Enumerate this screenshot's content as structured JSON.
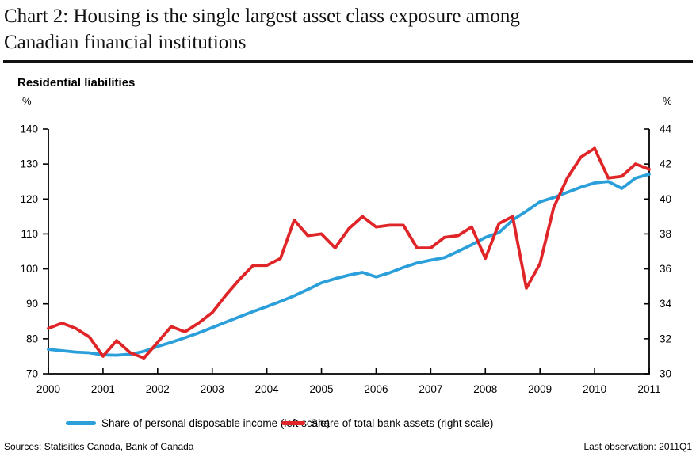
{
  "header": {
    "title_line1": "Chart 2: Housing is the single largest asset class exposure among",
    "title_line2": "Canadian financial institutions",
    "subtitle": "Residential liabilities"
  },
  "chart_data": {
    "type": "line",
    "title": "Residential liabilities",
    "x_frequency": "quarterly",
    "x_start": "2000Q1",
    "x_end": "2011Q1",
    "x_axis": {
      "tick_years": [
        2000,
        2001,
        2002,
        2003,
        2004,
        2005,
        2006,
        2007,
        2008,
        2009,
        2010,
        2011
      ]
    },
    "left_axis": {
      "label": "%",
      "min": 70,
      "max": 140,
      "ticks": [
        140,
        130,
        120,
        110,
        100,
        90,
        80,
        70
      ]
    },
    "right_axis": {
      "label": "%",
      "min": 30,
      "max": 44,
      "ticks": [
        44,
        42,
        40,
        38,
        36,
        34,
        32,
        30
      ]
    },
    "grid": "off",
    "legend_position": "bottom",
    "series": [
      {
        "name": "Share of personal disposable income (left scale)",
        "axis": "left",
        "color": "#2B9FD9",
        "values": [
          77.0,
          76.6,
          76.2,
          76.0,
          75.4,
          75.3,
          75.6,
          76.4,
          77.8,
          79.0,
          80.3,
          81.7,
          83.2,
          84.8,
          86.3,
          87.8,
          89.2,
          90.7,
          92.3,
          94.1,
          96.0,
          97.2,
          98.2,
          99.0,
          97.7,
          98.9,
          100.4,
          101.7,
          102.5,
          103.2,
          105.0,
          106.9,
          109.0,
          110.4,
          114.0,
          116.5,
          119.2,
          120.4,
          121.9,
          123.4,
          124.6,
          125.0,
          123.0,
          126.0,
          127.1
        ]
      },
      {
        "name": "Share of total bank assets (right scale)",
        "axis": "right",
        "color": "#E02528",
        "values": [
          32.6,
          32.9,
          32.6,
          32.1,
          31.0,
          31.9,
          31.2,
          30.9,
          31.8,
          32.7,
          32.4,
          32.9,
          33.5,
          34.5,
          35.4,
          36.2,
          36.2,
          36.6,
          38.8,
          37.9,
          38.0,
          37.2,
          38.3,
          39.0,
          38.4,
          38.5,
          38.5,
          37.2,
          37.2,
          37.8,
          37.9,
          38.4,
          36.6,
          38.6,
          39.0,
          34.9,
          36.3,
          39.5,
          41.2,
          42.4,
          42.9,
          41.2,
          41.3,
          42.0,
          41.7
        ]
      }
    ]
  },
  "footer": {
    "sources": "Sources: Statisitics Canada, Bank of Canada",
    "last_observation": "Last observation: 2011Q1"
  }
}
